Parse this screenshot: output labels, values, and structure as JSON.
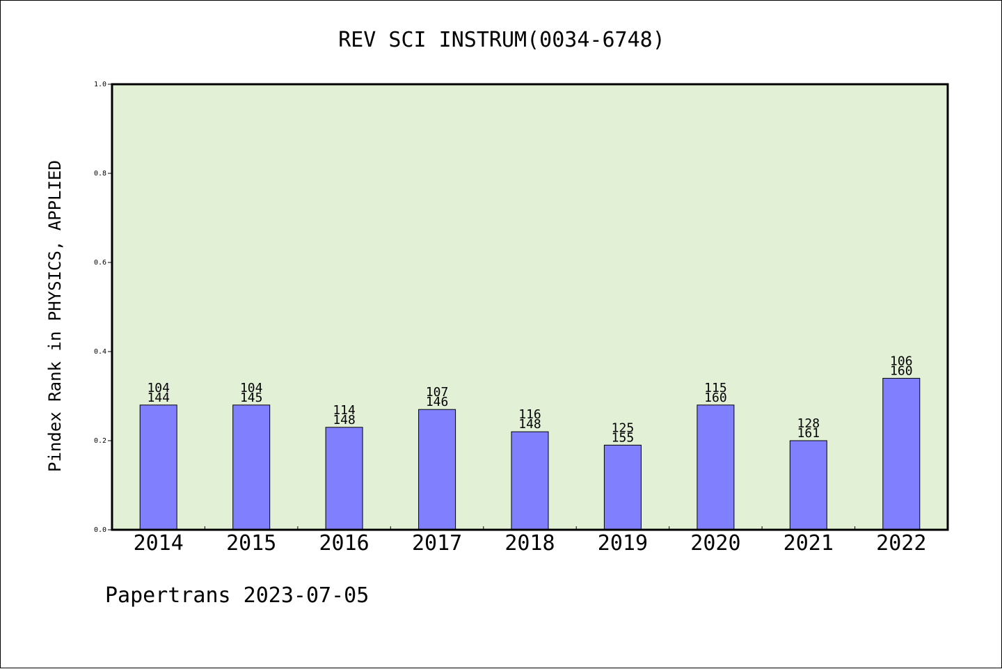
{
  "chart_data": {
    "type": "bar",
    "title": "REV SCI INSTRUM(0034-6748)",
    "ylabel": "Pindex Rank in PHYSICS, APPLIED",
    "xlabel": "",
    "ylim": [
      0,
      1.0
    ],
    "yticks": [
      "0.0",
      "0.2",
      "0.4",
      "0.6",
      "0.8",
      "1.0"
    ],
    "categories": [
      "2014",
      "2015",
      "2016",
      "2017",
      "2018",
      "2019",
      "2020",
      "2021",
      "2022"
    ],
    "values": [
      0.28,
      0.28,
      0.23,
      0.27,
      0.22,
      0.19,
      0.28,
      0.2,
      0.34
    ],
    "labels_top": [
      "104",
      "104",
      "114",
      "107",
      "116",
      "125",
      "115",
      "128",
      "106"
    ],
    "labels_bottom": [
      "144",
      "145",
      "148",
      "146",
      "148",
      "155",
      "160",
      "161",
      "160"
    ],
    "grid": false,
    "legend": "none",
    "colors": {
      "plot_background": "#e2f0d6",
      "bar_fill": "#8080ff",
      "bar_stroke": "#000000"
    }
  },
  "footer": {
    "text": "Papertrans 2023-07-05"
  }
}
